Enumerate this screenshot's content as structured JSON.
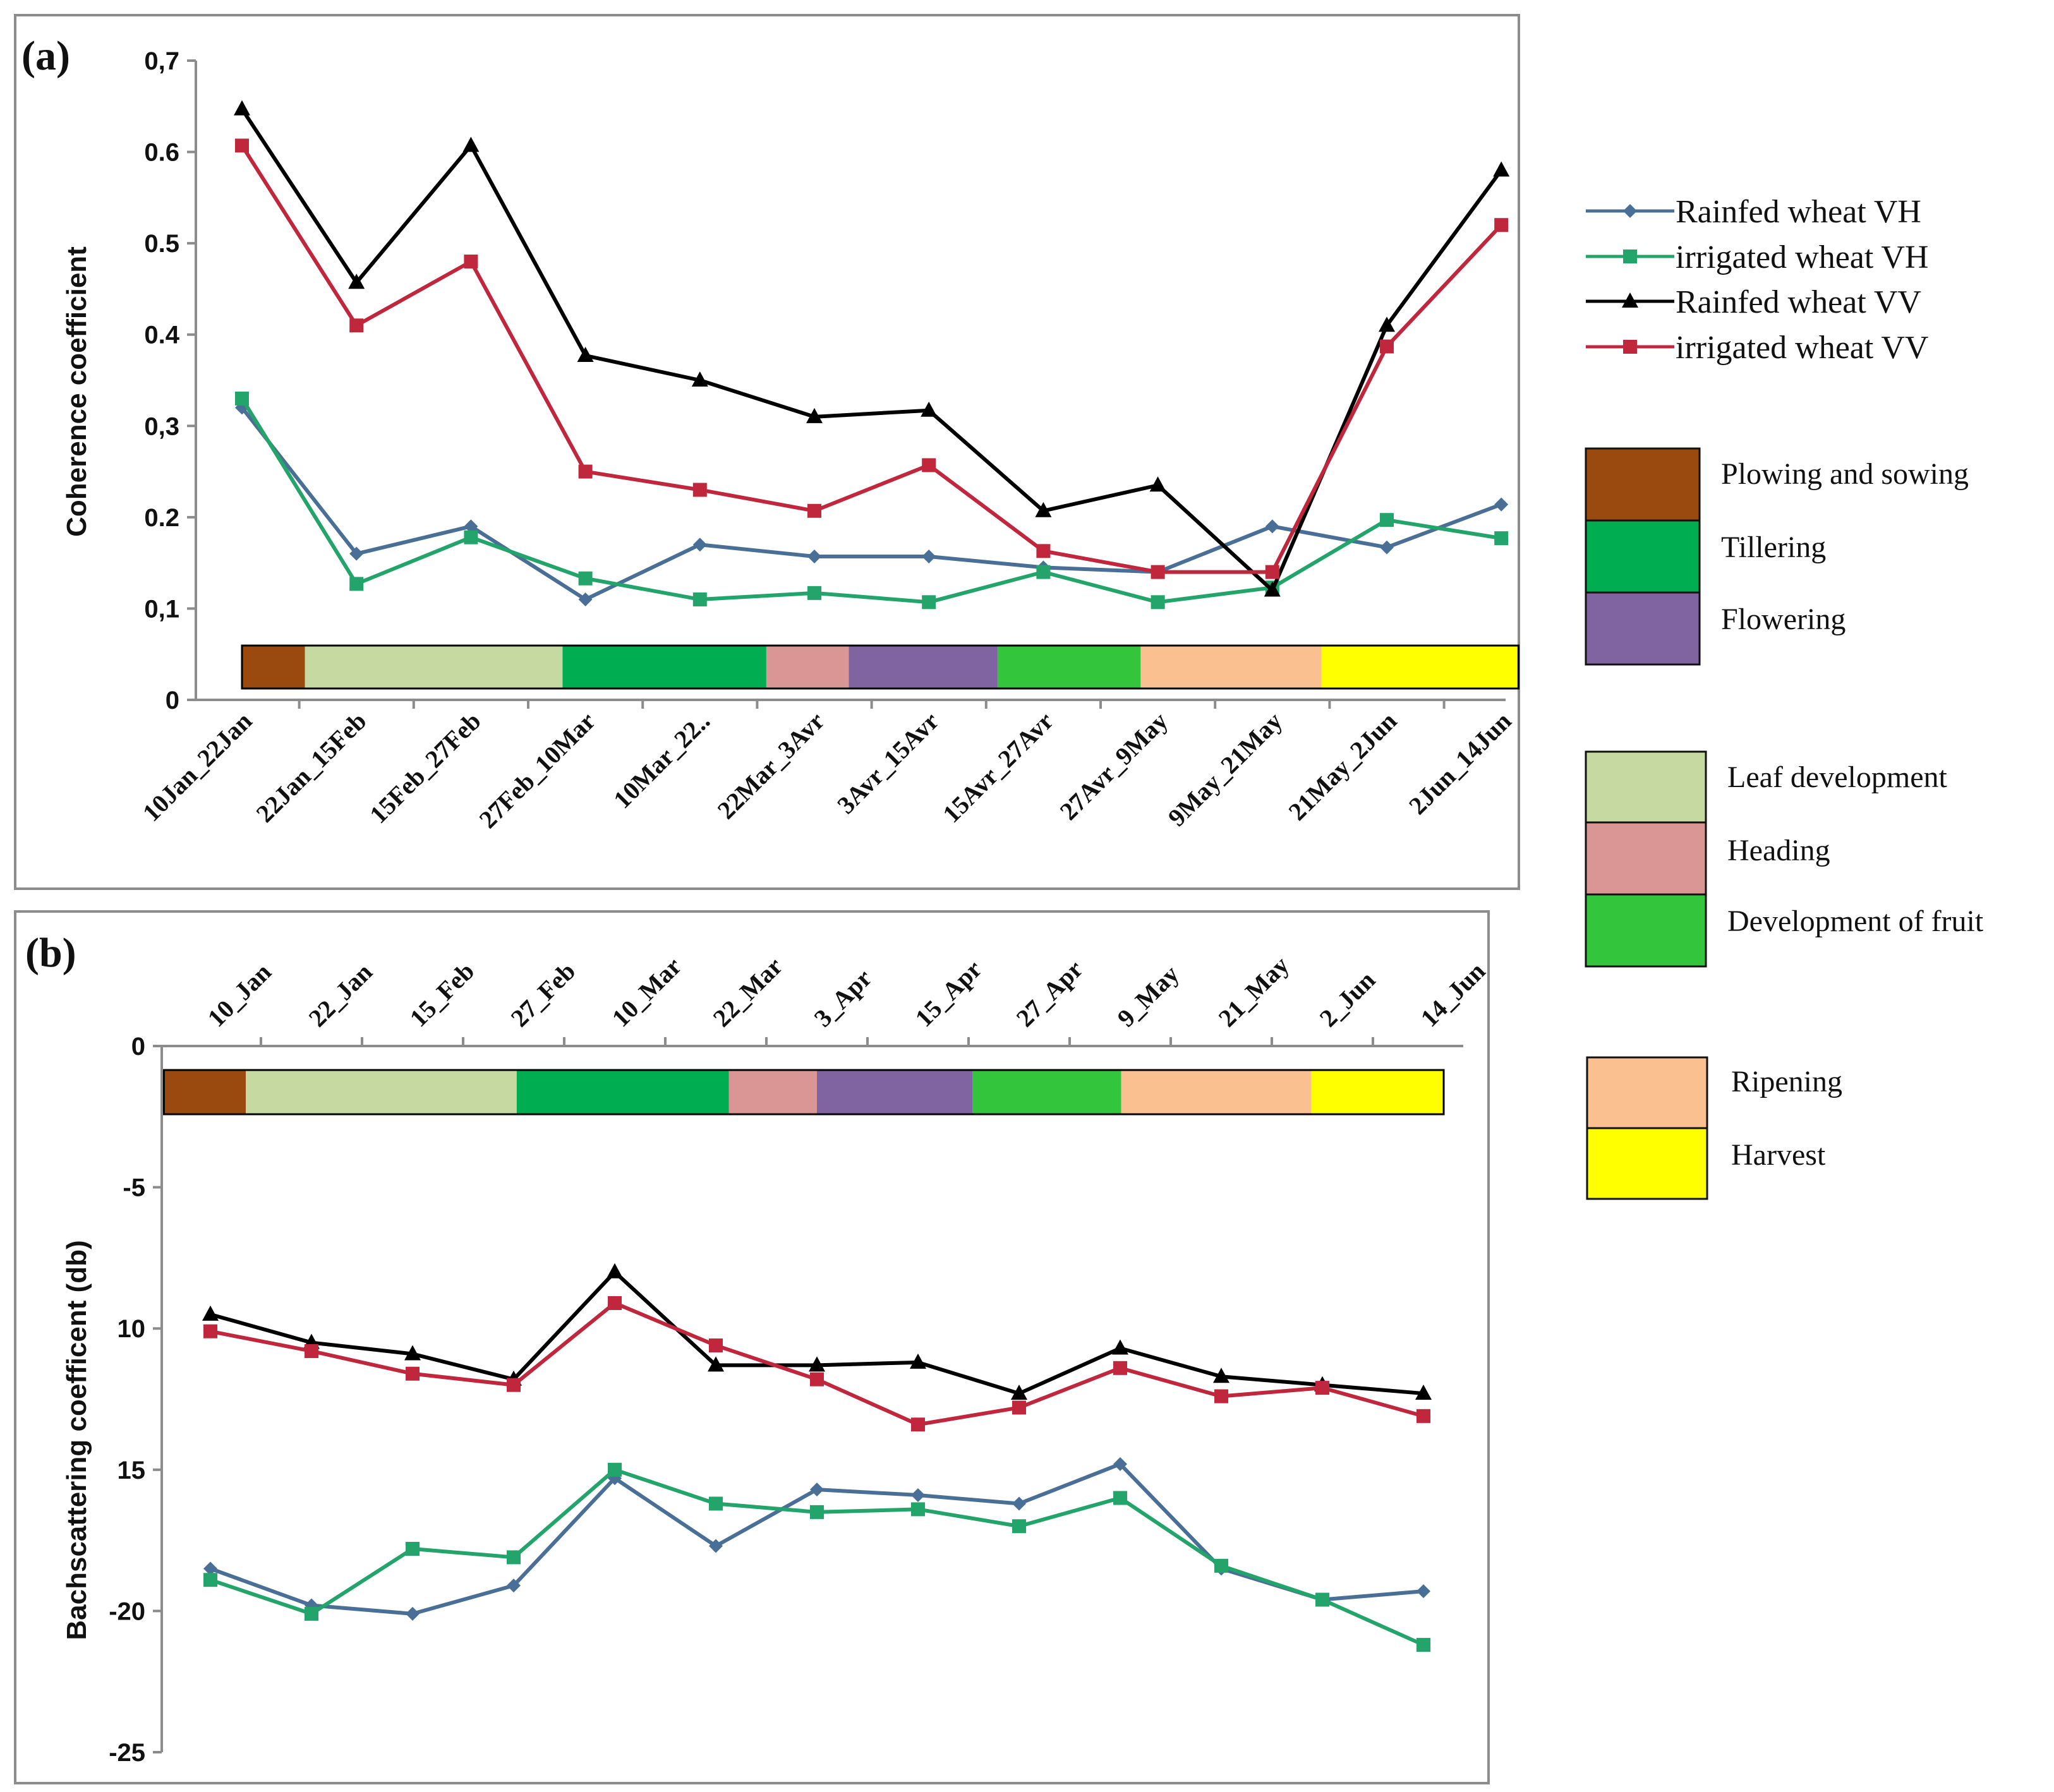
{
  "colors": {
    "rainfed_vh": "#4a6f97",
    "irrigated_vh": "#22a46a",
    "rainfed_vv": "#000000",
    "irrigated_vv": "#c0273d",
    "stage_plowing": "#9a4a0f",
    "stage_leaf": "#c6d9a0",
    "stage_tillering": "#00ad50",
    "stage_heading": "#d99694",
    "stage_flowering": "#8064a2",
    "stage_fruit": "#33c63c",
    "stage_ripening": "#fac090",
    "stage_harvest": "#ffff00"
  },
  "legend": {
    "series": [
      {
        "key": "rainfed_vh",
        "label": "Rainfed wheat VH",
        "marker": "diamond"
      },
      {
        "key": "irrigated_vh",
        "label": "irrigated wheat VH",
        "marker": "square"
      },
      {
        "key": "rainfed_vv",
        "label": "Rainfed wheat VV",
        "marker": "triangle"
      },
      {
        "key": "irrigated_vv",
        "label": "irrigated wheat VV",
        "marker": "square"
      }
    ],
    "stages": [
      {
        "key": "stage_plowing",
        "label": "Plowing and sowing"
      },
      {
        "key": "stage_tillering",
        "label": "Tillering"
      },
      {
        "key": "stage_flowering",
        "label": "Flowering"
      },
      {
        "key": "stage_leaf",
        "label": "Leaf development"
      },
      {
        "key": "stage_heading",
        "label": "Heading"
      },
      {
        "key": "stage_fruit",
        "label": "Development of fruit"
      },
      {
        "key": "stage_ripening",
        "label": "Ripening"
      },
      {
        "key": "stage_harvest",
        "label": "Harvest"
      }
    ]
  },
  "chart_data": [
    {
      "type": "line",
      "panel_label": "(a)",
      "title": "",
      "xlabel": "",
      "ylabel": "Coherence coefficient",
      "ylim": [
        0,
        0.7
      ],
      "yticks": [
        {
          "value": 0,
          "label": "0"
        },
        {
          "value": 0.1,
          "label": "0,1"
        },
        {
          "value": 0.2,
          "label": "0.2"
        },
        {
          "value": 0.3,
          "label": "0,3"
        },
        {
          "value": 0.4,
          "label": "0.4"
        },
        {
          "value": 0.5,
          "label": "0.5"
        },
        {
          "value": 0.6,
          "label": "0.6"
        },
        {
          "value": 0.7,
          "label": "0,7"
        }
      ],
      "categories": [
        "10Jan_22Jan",
        "22Jan_15Feb",
        "15Feb_27Feb",
        "27Feb_10Mar",
        "10Mar_22..",
        "22Mar_3Avr",
        "3Avr_15Avr",
        "15Avr_27Avr",
        "27Avr_9May",
        "9May_21May",
        "21May_2Jun",
        "2Jun_14Jun"
      ],
      "series": [
        {
          "key": "rainfed_vh",
          "name": "Rainfed wheat VH",
          "values": [
            0.32,
            0.16,
            0.19,
            0.11,
            0.17,
            0.157,
            0.157,
            0.145,
            0.14,
            0.19,
            0.167,
            0.214
          ]
        },
        {
          "key": "irrigated_vh",
          "name": "irrigated wheat VH",
          "values": [
            0.33,
            0.127,
            0.178,
            0.133,
            0.11,
            0.117,
            0.107,
            0.14,
            0.107,
            0.123,
            0.197,
            0.177
          ]
        },
        {
          "key": "rainfed_vv",
          "name": "Rainfed wheat VV",
          "values": [
            0.647,
            0.457,
            0.607,
            0.377,
            0.35,
            0.31,
            0.317,
            0.207,
            0.235,
            0.12,
            0.41,
            0.58
          ]
        },
        {
          "key": "irrigated_vv",
          "name": "irrigated wheat VV",
          "values": [
            0.607,
            0.41,
            0.48,
            0.25,
            0.23,
            0.207,
            0.257,
            0.163,
            0.14,
            0.14,
            0.387,
            0.52
          ]
        }
      ],
      "stage_bar": [
        {
          "stage": "stage_plowing",
          "start": 0,
          "end": 0.55
        },
        {
          "stage": "stage_leaf",
          "start": 0.55,
          "end": 2.8
        },
        {
          "stage": "stage_tillering",
          "start": 2.8,
          "end": 4.58
        },
        {
          "stage": "stage_heading",
          "start": 4.58,
          "end": 5.3
        },
        {
          "stage": "stage_flowering",
          "start": 5.3,
          "end": 6.6
        },
        {
          "stage": "stage_fruit",
          "start": 6.6,
          "end": 7.85
        },
        {
          "stage": "stage_ripening",
          "start": 7.85,
          "end": 9.43
        },
        {
          "stage": "stage_harvest",
          "start": 9.43,
          "end": 11.15
        }
      ]
    },
    {
      "type": "line",
      "panel_label": "(b)",
      "title": "",
      "xlabel": "",
      "ylabel": "Bachscattering coefficent (db)",
      "ylim": [
        -25,
        0
      ],
      "yticks": [
        {
          "value": 0,
          "label": "0"
        },
        {
          "value": -5,
          "label": "-5"
        },
        {
          "value": -10,
          "label": "10"
        },
        {
          "value": -15,
          "label": "15"
        },
        {
          "value": -20,
          "label": "-20"
        },
        {
          "value": -25,
          "label": "-25"
        }
      ],
      "categories": [
        "10_Jan",
        "22_Jan",
        "15_Feb",
        "27_Feb",
        "10_Mar",
        "22_Mar",
        "3_Apr",
        "15_Apr",
        "27_Apr",
        "9_May",
        "21_May",
        "2_Jun",
        "14_Jun"
      ],
      "series": [
        {
          "key": "rainfed_vh",
          "name": "Rainfed wheat VH",
          "values": [
            -18.5,
            -19.8,
            -20.1,
            -19.1,
            -15.3,
            -17.7,
            -15.7,
            -15.9,
            -16.2,
            -14.8,
            -18.5,
            -19.6,
            -19.3
          ]
        },
        {
          "key": "irrigated_vh",
          "name": "irrigated wheat VH",
          "values": [
            -18.9,
            -20.1,
            -17.8,
            -18.1,
            -15.0,
            -16.2,
            -16.5,
            -16.4,
            -17.0,
            -16.0,
            -18.4,
            -19.6,
            -21.2
          ]
        },
        {
          "key": "rainfed_vv",
          "name": "Rainfed wheat VV",
          "values": [
            -9.5,
            -10.5,
            -10.9,
            -11.8,
            -8.0,
            -11.3,
            -11.3,
            -11.2,
            -12.3,
            -10.7,
            -11.7,
            -12.0,
            -12.3
          ]
        },
        {
          "key": "irrigated_vv",
          "name": "irrigated wheat VV",
          "values": [
            -10.1,
            -10.8,
            -11.6,
            -12.0,
            -9.1,
            -10.6,
            -11.8,
            -13.4,
            -12.8,
            -11.4,
            -12.4,
            -12.1,
            -13.1
          ]
        }
      ],
      "stage_bar": [
        {
          "stage": "stage_plowing",
          "start": -0.46,
          "end": 0.35
        },
        {
          "stage": "stage_leaf",
          "start": 0.35,
          "end": 3.03
        },
        {
          "stage": "stage_tillering",
          "start": 3.03,
          "end": 5.13
        },
        {
          "stage": "stage_heading",
          "start": 5.13,
          "end": 6.0
        },
        {
          "stage": "stage_flowering",
          "start": 6.0,
          "end": 7.54
        },
        {
          "stage": "stage_fruit",
          "start": 7.54,
          "end": 9.01
        },
        {
          "stage": "stage_ripening",
          "start": 9.01,
          "end": 10.89
        },
        {
          "stage": "stage_harvest",
          "start": 10.89,
          "end": 12.2
        }
      ]
    }
  ]
}
